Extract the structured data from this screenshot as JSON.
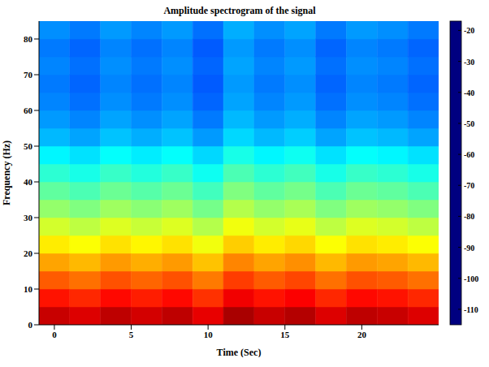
{
  "chart_data": {
    "type": "heatmap",
    "title": "Amplitude spectrogram of the signal",
    "x_label": "Time (Sec)",
    "y_label": "Frequency (Hz)",
    "x_edges": [
      -1,
      1,
      3,
      5,
      7,
      9,
      11,
      13,
      15,
      17,
      19,
      21,
      23,
      25
    ],
    "y_edges": [
      0,
      5,
      10,
      15,
      20,
      25,
      30,
      35,
      40,
      45,
      50,
      55,
      60,
      65,
      70,
      75,
      80,
      85
    ],
    "cells": [
      [
        -24,
        -26,
        -23,
        -25,
        -23,
        -27,
        -21,
        -24,
        -22,
        -26,
        -23,
        -24,
        -26
      ],
      [
        -31,
        -33,
        -30,
        -32,
        -30,
        -34,
        -28,
        -31,
        -29,
        -33,
        -30,
        -31,
        -33
      ],
      [
        -38,
        -40,
        -37,
        -39,
        -37,
        -41,
        -35,
        -38,
        -36,
        -40,
        -37,
        -38,
        -40
      ],
      [
        -45,
        -47,
        -44,
        -46,
        -44,
        -48,
        -42,
        -45,
        -43,
        -47,
        -44,
        -45,
        -47
      ],
      [
        -52,
        -54,
        -51,
        -53,
        -51,
        -55,
        -49,
        -52,
        -50,
        -54,
        -51,
        -52,
        -54
      ],
      [
        -58,
        -60,
        -57,
        -59,
        -57,
        -61,
        -55,
        -58,
        -56,
        -60,
        -57,
        -58,
        -60
      ],
      [
        -64,
        -66,
        -63,
        -65,
        -63,
        -67,
        -61,
        -64,
        -62,
        -66,
        -63,
        -64,
        -66
      ],
      [
        -69,
        -71,
        -68,
        -70,
        -68,
        -72,
        -66,
        -69,
        -67,
        -71,
        -68,
        -69,
        -71
      ],
      [
        -74,
        -76,
        -73,
        -75,
        -73,
        -77,
        -71,
        -74,
        -72,
        -76,
        -73,
        -74,
        -76
      ],
      [
        -79,
        -81,
        -78,
        -80,
        -78,
        -82,
        -76,
        -79,
        -77,
        -81,
        -78,
        -79,
        -81
      ],
      [
        -85,
        -87,
        -84,
        -86,
        -84,
        -88,
        -82,
        -85,
        -83,
        -87,
        -84,
        -85,
        -87
      ],
      [
        -88,
        -90,
        -87,
        -89,
        -87,
        -91,
        -85,
        -88,
        -86,
        -90,
        -87,
        -88,
        -90
      ],
      [
        -90,
        -92,
        -89,
        -91,
        -89,
        -93,
        -87,
        -90,
        -88,
        -92,
        -89,
        -90,
        -92
      ],
      [
        -91,
        -93,
        -90,
        -92,
        -90,
        -94,
        -88,
        -91,
        -89,
        -93,
        -90,
        -91,
        -93
      ],
      [
        -90,
        -92,
        -89,
        -91,
        -89,
        -93,
        -87,
        -90,
        -88,
        -92,
        -89,
        -90,
        -92
      ],
      [
        -91,
        -93,
        -90,
        -92,
        -90,
        -94,
        -88,
        -91,
        -89,
        -93,
        -90,
        -91,
        -93
      ],
      [
        -89,
        -91,
        -88,
        -90,
        -88,
        -92,
        -86,
        -89,
        -87,
        -91,
        -88,
        -89,
        -91
      ]
    ],
    "xlim": [
      -1,
      25
    ],
    "xticks": [
      0,
      5,
      10,
      15,
      20
    ],
    "ylim": [
      0,
      85
    ],
    "yticks": [
      0,
      10,
      20,
      30,
      40,
      50,
      60,
      70,
      80
    ],
    "colorbar_range": [
      -115,
      -17
    ],
    "colorbar_ticks": [
      -20,
      -30,
      -40,
      -50,
      -60,
      -70,
      -80,
      -90,
      -100,
      -110
    ]
  }
}
